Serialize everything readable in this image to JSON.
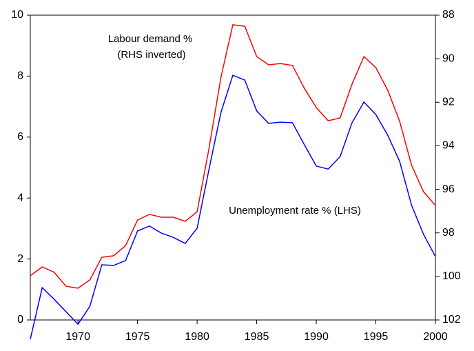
{
  "chart_data": {
    "type": "line",
    "x": [
      1966,
      1967,
      1968,
      1969,
      1970,
      1971,
      1972,
      1973,
      1974,
      1975,
      1976,
      1977,
      1978,
      1979,
      1980,
      1981,
      1982,
      1983,
      1984,
      1985,
      1986,
      1987,
      1988,
      1989,
      1990,
      1991,
      1992,
      1993,
      1994,
      1995,
      1996,
      1997,
      1998,
      1999,
      2000
    ],
    "series": [
      {
        "color": "#0000ff",
        "axis": "y",
        "values": [
          -0.63,
          1.06,
          0.68,
          0.27,
          -0.14,
          0.45,
          1.81,
          1.79,
          1.95,
          2.92,
          3.08,
          2.85,
          2.71,
          2.51,
          3.01,
          4.95,
          6.81,
          8.03,
          7.87,
          6.86,
          6.45,
          6.49,
          6.47,
          5.75,
          5.05,
          4.95,
          5.36,
          6.47,
          7.15,
          6.74,
          6.06,
          5.2,
          3.76,
          2.81,
          2.08
        ]
      },
      {
        "color": "#ff0000",
        "axis": "y2",
        "values": [
          99.97,
          99.56,
          99.81,
          100.45,
          100.54,
          100.16,
          99.12,
          99.05,
          98.58,
          97.41,
          97.15,
          97.28,
          97.28,
          97.47,
          97.03,
          94.11,
          90.85,
          88.44,
          88.51,
          89.9,
          90.28,
          90.22,
          90.31,
          91.36,
          92.24,
          92.85,
          92.72,
          91.17,
          89.9,
          90.41,
          91.45,
          92.88,
          94.9,
          96.11,
          96.74
        ]
      }
    ],
    "xlim": [
      1966,
      2000
    ],
    "xticks": [
      1970,
      1975,
      1980,
      1985,
      1990,
      1995,
      2000
    ],
    "ylim": [
      0,
      10
    ],
    "yticks": [
      0,
      2,
      4,
      6,
      8,
      10
    ],
    "y2lim": [
      102,
      88
    ],
    "y2ticks": [
      88,
      90,
      92,
      94,
      96,
      98,
      100,
      102
    ],
    "annotations": [
      "Labour demand %",
      "(RHS inverted)",
      "Unemployment rate % (LHS)"
    ]
  }
}
